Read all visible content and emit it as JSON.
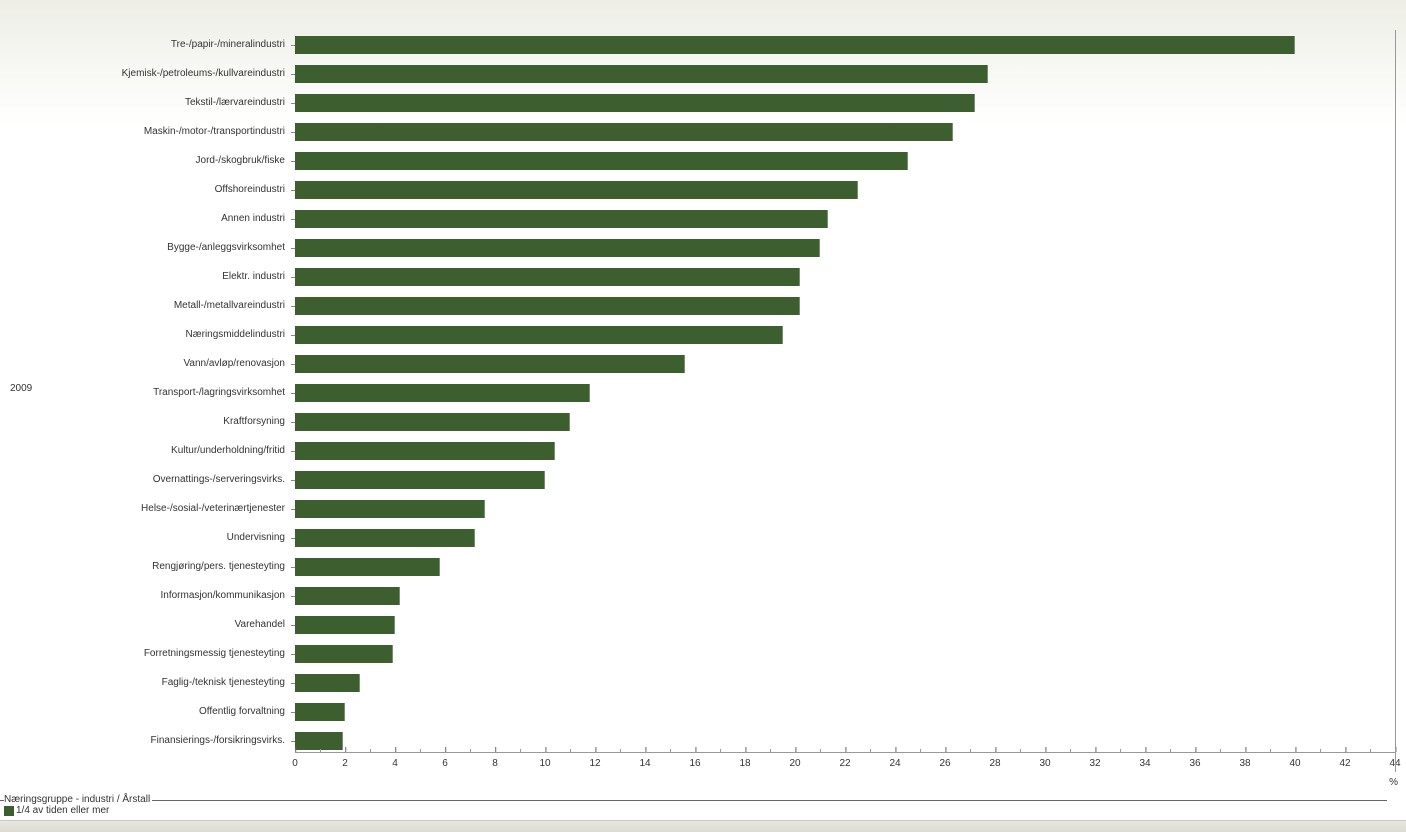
{
  "chart": {
    "type": "bar",
    "orientation": "horizontal",
    "year_label": "2009",
    "bar_color": "#3d5e2e",
    "background_gradient_start": "#eeeee6",
    "background_gradient_end": "#ffffff",
    "label_fontsize": 10,
    "label_color": "#333333",
    "axis_color": "#999999",
    "x_axis": {
      "min": 0,
      "max": 44,
      "tick_step": 2,
      "minor_tick_step": 1,
      "label": "%"
    },
    "data": [
      {
        "label": "Tre-/papir-/mineralindustri",
        "value": 40
      },
      {
        "label": "Kjemisk-/petroleums-/kullvareindustri",
        "value": 27.7
      },
      {
        "label": "Tekstil-/lærvareindustri",
        "value": 27.2
      },
      {
        "label": "Maskin-/motor-/transportindustri",
        "value": 26.3
      },
      {
        "label": "Jord-/skogbruk/fiske",
        "value": 24.5
      },
      {
        "label": "Offshoreindustri",
        "value": 22.5
      },
      {
        "label": "Annen industri",
        "value": 21.3
      },
      {
        "label": "Bygge-/anleggsvirksomhet",
        "value": 21
      },
      {
        "label": "Elektr. industri",
        "value": 20.2
      },
      {
        "label": "Metall-/metallvareindustri",
        "value": 20.2
      },
      {
        "label": "Næringsmiddelindustri",
        "value": 19.5
      },
      {
        "label": "Vann/avløp/renovasjon",
        "value": 15.6
      },
      {
        "label": "Transport-/lagringsvirksomhet",
        "value": 11.8
      },
      {
        "label": "Kraftforsyning",
        "value": 11
      },
      {
        "label": "Kultur/underholdning/fritid",
        "value": 10.4
      },
      {
        "label": "Overnattings-/serveringsvirks.",
        "value": 10
      },
      {
        "label": "Helse-/sosial-/veterinærtjenester",
        "value": 7.6
      },
      {
        "label": "Undervisning",
        "value": 7.2
      },
      {
        "label": "Rengjøring/pers. tjenesteyting",
        "value": 5.8
      },
      {
        "label": "Informasjon/kommunikasjon",
        "value": 4.2
      },
      {
        "label": "Varehandel",
        "value": 4
      },
      {
        "label": "Forretningsmessig tjenesteyting",
        "value": 3.9
      },
      {
        "label": "Faglig-/teknisk tjenesteyting",
        "value": 2.6
      },
      {
        "label": "Offentlig forvaltning",
        "value": 2
      },
      {
        "label": "Finansierings-/forsikringsvirks.",
        "value": 1.9
      }
    ],
    "legend": {
      "title": "Næringsgruppe - industri / Årstall",
      "items": [
        {
          "label": "1/4 av tiden eller mer",
          "color": "#3d5e2e"
        }
      ]
    }
  }
}
